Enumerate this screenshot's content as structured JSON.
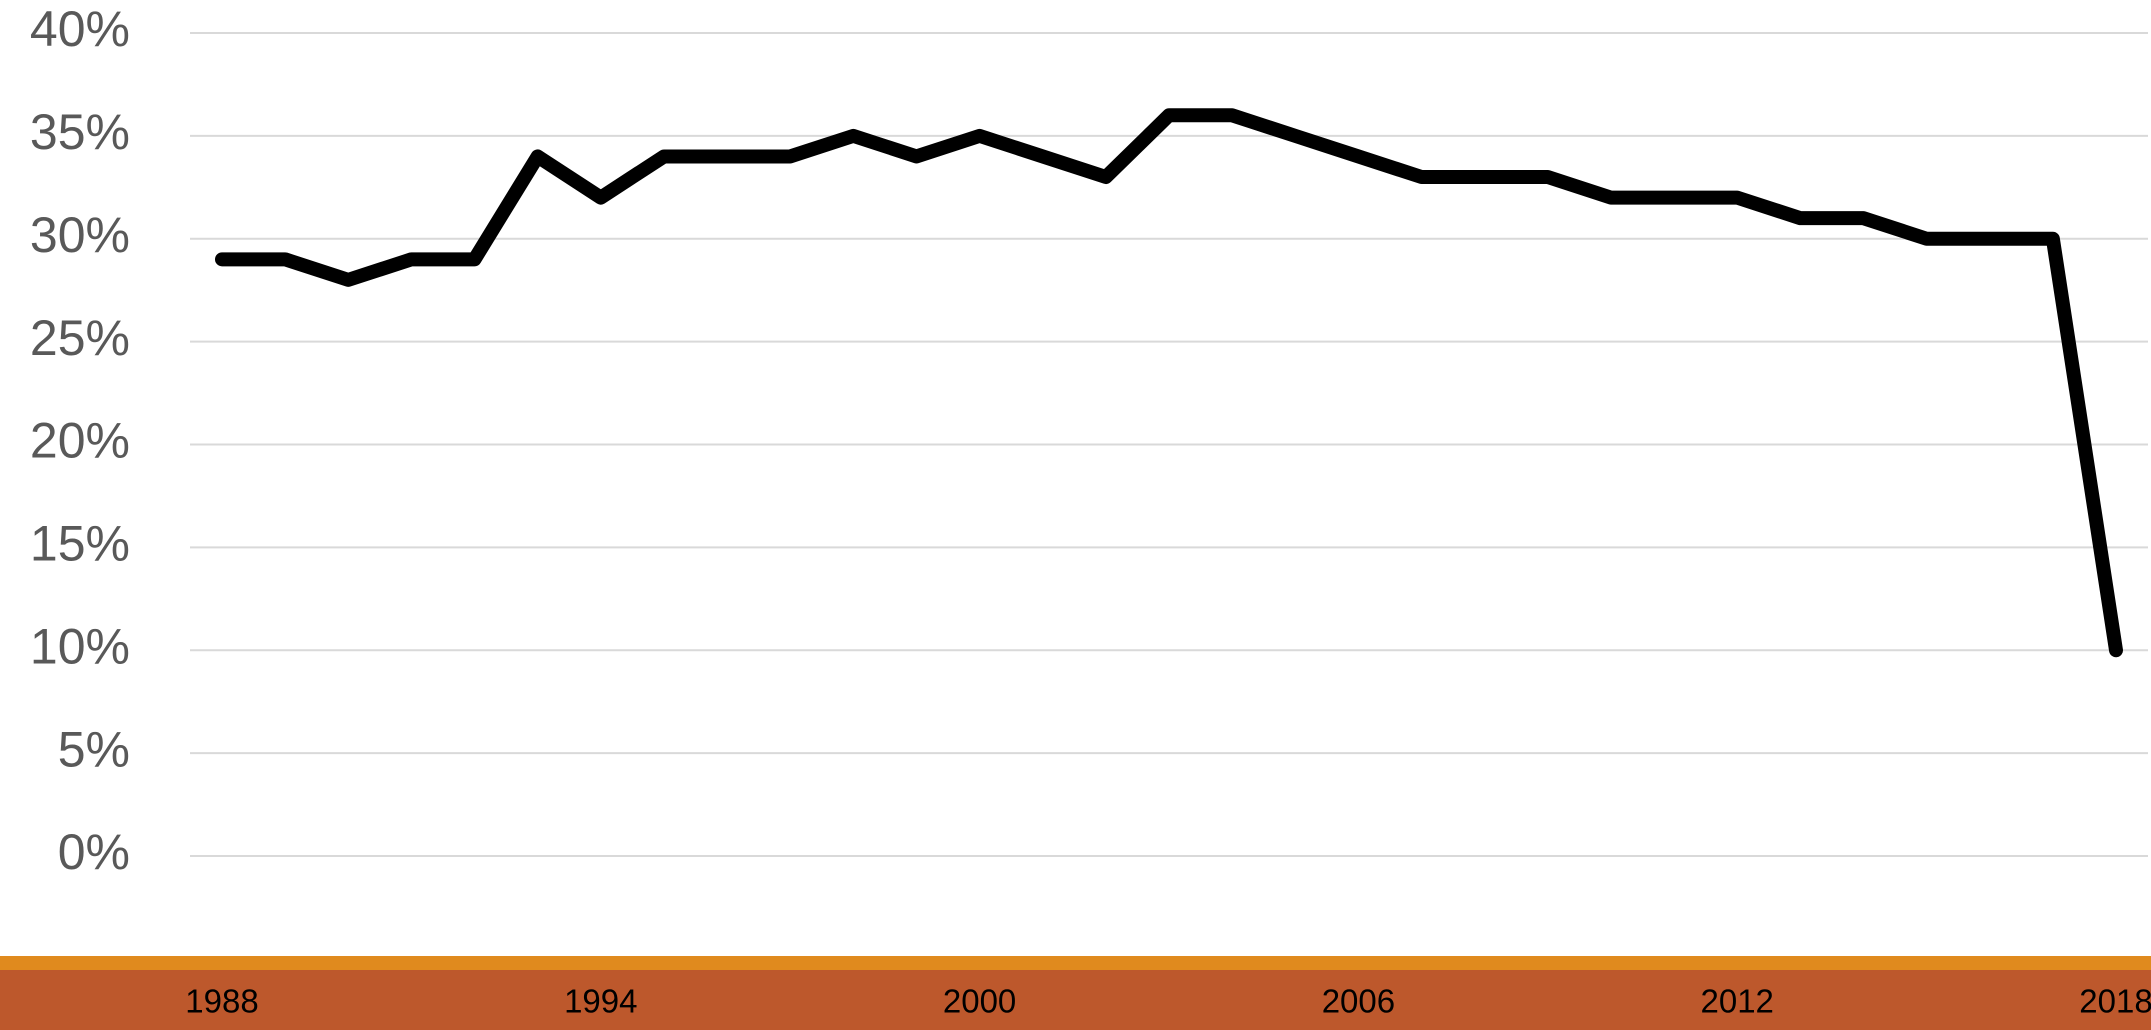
{
  "chart_data": {
    "type": "line",
    "x": [
      1988,
      1989,
      1990,
      1991,
      1992,
      1993,
      1994,
      1995,
      1996,
      1997,
      1998,
      1999,
      2000,
      2001,
      2002,
      2003,
      2004,
      2005,
      2006,
      2007,
      2008,
      2009,
      2010,
      2011,
      2012,
      2013,
      2014,
      2015,
      2016,
      2017,
      2018
    ],
    "series": [
      {
        "color": "#000000",
        "values": [
          29,
          29,
          28,
          29,
          29,
          34,
          32,
          34,
          34,
          34,
          35,
          34,
          35,
          34,
          33,
          36,
          36,
          35,
          34,
          33,
          33,
          33,
          32,
          32,
          32,
          31,
          31,
          30,
          30,
          30,
          10
        ]
      }
    ],
    "xlim": [
      1988,
      2018
    ],
    "xticks": [
      1988,
      1994,
      2000,
      2006,
      2012,
      2018
    ],
    "ylim": [
      0,
      40
    ],
    "yticks": [
      {
        "value": 0,
        "label": "0%"
      },
      {
        "value": 5,
        "label": "5%"
      },
      {
        "value": 10,
        "label": "10%"
      },
      {
        "value": 15,
        "label": "15%"
      },
      {
        "value": 20,
        "label": "20%"
      },
      {
        "value": 25,
        "label": "25%"
      },
      {
        "value": 30,
        "label": "30%"
      },
      {
        "value": 35,
        "label": "35%"
      },
      {
        "value": 40,
        "label": "40%"
      }
    ],
    "grid": true
  }
}
